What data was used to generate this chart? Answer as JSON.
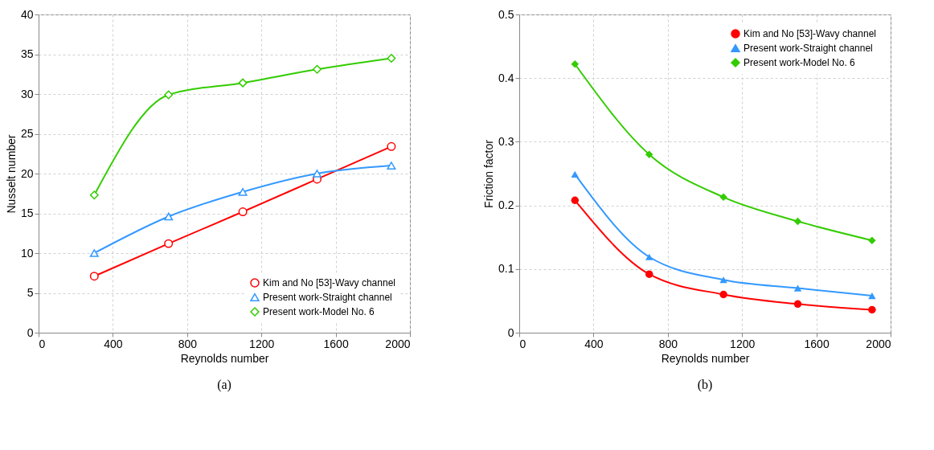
{
  "chart_data": [
    {
      "type": "line",
      "xlabel": "Reynolds number",
      "ylabel": "Nusselt number",
      "annotations": [
        "(a)"
      ],
      "x": [
        300,
        700,
        1100,
        1500,
        1900
      ],
      "xlim": [
        0,
        2000
      ],
      "xticks": [
        0,
        400,
        800,
        1200,
        1600,
        2000
      ],
      "ylim": [
        0,
        40
      ],
      "yticks": [
        0,
        5,
        10,
        15,
        20,
        25,
        30,
        35,
        40
      ],
      "grid": true,
      "legend": "bottom right",
      "series": [
        {
          "name": "Kim and No [53]-Wavy channel",
          "color": "#ff0000",
          "marker": "circle",
          "values": [
            7.1,
            11.2,
            15.2,
            19.3,
            23.4
          ]
        },
        {
          "name": "Present work-Straight channel",
          "color": "#3399ff",
          "marker": "triangle",
          "values": [
            10.0,
            14.6,
            17.7,
            20.0,
            21.0
          ]
        },
        {
          "name": "Present work-Model No. 6",
          "color": "#33cc00",
          "marker": "diamond",
          "values": [
            17.3,
            29.9,
            31.4,
            33.1,
            34.5
          ]
        }
      ]
    },
    {
      "type": "line",
      "xlabel": "Reynolds number",
      "ylabel": "Friction factor",
      "annotations": [
        "(b)"
      ],
      "x": [
        300,
        700,
        1100,
        1500,
        1900
      ],
      "xlim": [
        0,
        2000
      ],
      "xticks": [
        0,
        400,
        800,
        1200,
        1600,
        2000
      ],
      "ylim": [
        0,
        0.5
      ],
      "yticks": [
        0,
        0.1,
        0.2,
        0.3,
        0.4,
        0.5
      ],
      "grid": true,
      "legend": "top right",
      "series": [
        {
          "name": "Kim and No [53]-Wavy channel",
          "color": "#ff0000",
          "marker": "circle",
          "values": [
            0.208,
            0.092,
            0.06,
            0.045,
            0.036
          ]
        },
        {
          "name": "Present work-Straight channel",
          "color": "#3399ff",
          "marker": "triangle",
          "values": [
            0.249,
            0.119,
            0.083,
            0.07,
            0.058
          ]
        },
        {
          "name": "Present work-Model No. 6",
          "color": "#33cc00",
          "marker": "diamond",
          "values": [
            0.422,
            0.28,
            0.213,
            0.175,
            0.145
          ]
        }
      ]
    }
  ]
}
